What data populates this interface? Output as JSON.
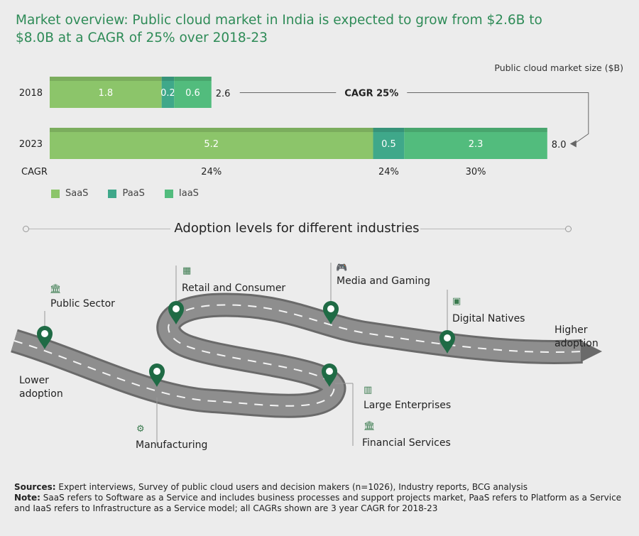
{
  "title": "Market overview: Public cloud market in India is expected to grow from $2.6B to $8.0B at a CAGR of 25% over 2018-23",
  "chart_data": {
    "type": "bar",
    "orientation": "horizontal",
    "stacked": true,
    "title": "Market overview: Public cloud market in India is expected to grow from $2.6B to $8.0B at a CAGR of 25% over 2018-23",
    "value_axis_label": "Public cloud market size ($B)",
    "categories": [
      "2018",
      "2023"
    ],
    "series": [
      {
        "name": "SaaS",
        "values": [
          1.8,
          5.2
        ],
        "color": "#8cc56a",
        "cagr": "24%"
      },
      {
        "name": "PaaS",
        "values": [
          0.2,
          0.5
        ],
        "color": "#3fa88a",
        "cagr": "24%"
      },
      {
        "name": "IaaS",
        "values": [
          0.6,
          2.3
        ],
        "color": "#52bc7d",
        "cagr": "30%"
      }
    ],
    "totals": [
      "2.6",
      "8.0"
    ],
    "cagr_label": "CAGR",
    "total_cagr": "CAGR 25%"
  },
  "adoption": {
    "heading": "Adoption levels for different industries",
    "low_label": "Lower adoption",
    "high_label": "Higher adoption",
    "industries": [
      {
        "name": "Public Sector",
        "icon": "government-building-icon"
      },
      {
        "name": "Manufacturing",
        "icon": "gears-icon"
      },
      {
        "name": "Retail and Consumer",
        "icon": "storefront-icon"
      },
      {
        "name": "Large Enterprises",
        "icon": "factory-icon"
      },
      {
        "name": "Financial Services",
        "icon": "bank-icon"
      },
      {
        "name": "Media and Gaming",
        "icon": "gamepad-icon"
      },
      {
        "name": "Digital Natives",
        "icon": "chip-icon"
      }
    ]
  },
  "footer": {
    "sources_label": "Sources:",
    "sources_text": " Expert interviews, Survey of public cloud users and decision makers (n=1026), Industry reports, BCG analysis",
    "note_label": "Note:",
    "note_text": " SaaS refers to Software as a Service and includes business processes and support projects market, PaaS refers to Platform as a Service and IaaS refers to Infrastructure as a Service model; all CAGRs shown are 3 year CAGR for 2018-23"
  }
}
